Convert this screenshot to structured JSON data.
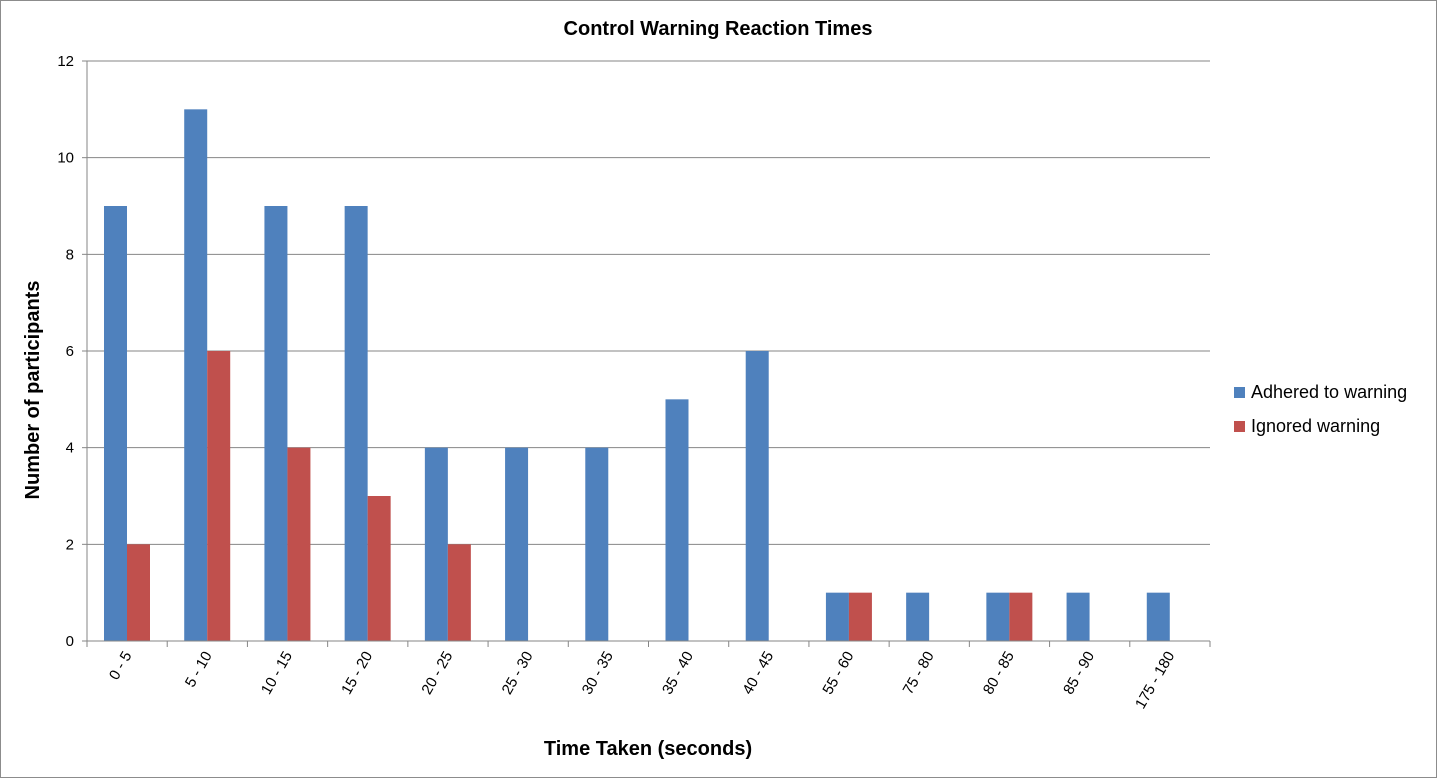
{
  "chart_data": {
    "type": "bar",
    "title": "Control Warning Reaction Times",
    "xlabel": "Time Taken (seconds)",
    "ylabel": "Number of participants",
    "categories": [
      "0 - 5",
      "5 - 10",
      "10 - 15",
      "15 - 20",
      "20 - 25",
      "25 - 30",
      "30 - 35",
      "35 - 40",
      "40 - 45",
      "55 - 60",
      "75 - 80",
      "80 - 85",
      "85 - 90",
      "175 - 180"
    ],
    "series": [
      {
        "name": "Adhered to warning",
        "color": "#4F81BD",
        "values": [
          9,
          11,
          9,
          9,
          4,
          4,
          4,
          5,
          6,
          1,
          1,
          1,
          1,
          1
        ]
      },
      {
        "name": "Ignored warning",
        "color": "#C0504D",
        "values": [
          2,
          6,
          4,
          3,
          2,
          0,
          0,
          0,
          0,
          1,
          0,
          1,
          0,
          0
        ]
      }
    ],
    "ylim": [
      0,
      12
    ],
    "yticks": [
      0,
      2,
      4,
      6,
      8,
      10,
      12
    ],
    "grid": true,
    "legend_position": "right"
  }
}
